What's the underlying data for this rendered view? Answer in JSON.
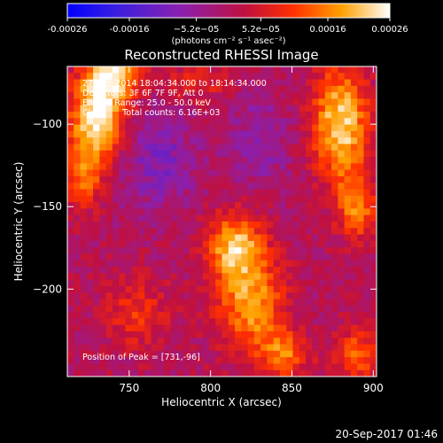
{
  "chart_data": {
    "type": "heatmap",
    "title": "Reconstructed RHESSI Image",
    "xlabel": "Heliocentric X (arcsec)",
    "ylabel": "Heliocentric Y (arcsec)",
    "xlim": [
      712,
      902
    ],
    "ylim": [
      -253,
      -65
    ],
    "x_ticks": [
      750,
      800,
      850,
      900
    ],
    "x_tick_labels": [
      "750",
      "800",
      "850",
      "900"
    ],
    "y_ticks": [
      -100,
      -150,
      -200
    ],
    "y_tick_labels": [
      "−100",
      "−150",
      "−200"
    ],
    "colorbar": {
      "range": [
        -0.00026,
        0.00026
      ],
      "ticks": [
        -0.00026,
        -0.00016,
        -5.2e-05,
        5.2e-05,
        0.00016,
        0.00026
      ],
      "tick_labels": [
        "-0.00026",
        "-0.00016",
        "−5.2e−05",
        "5.2e−05",
        "0.00016",
        "0.00026"
      ],
      "unit_label": "(photons cm⁻² s⁻¹ asec⁻²)",
      "colormap": "rhessi-blue-purple-red-yellow-white"
    },
    "annotations": [
      "27-Dec-2014 18:04:34.000 to 18:14:34.000",
      "Detectors: 3F 6F 7F 9F, Att 0",
      "Energy Range: 25.0 - 50.0 keV",
      "Clean      Total counts: 6.16E+03"
    ],
    "peak_label": "Position of Peak = [731,-96]",
    "peak_position": [
      731,
      -96
    ],
    "map_description_sources": [
      {
        "x": 731,
        "y": -96,
        "intensity": 1.0,
        "sx": 12,
        "sy": 16
      },
      {
        "x": 740,
        "y": -70,
        "intensity": 0.85,
        "sx": 12,
        "sy": 10
      },
      {
        "x": 722,
        "y": -130,
        "intensity": 0.6,
        "sx": 8,
        "sy": 14
      },
      {
        "x": 880,
        "y": -100,
        "intensity": 0.9,
        "sx": 12,
        "sy": 24
      },
      {
        "x": 890,
        "y": -150,
        "intensity": 0.6,
        "sx": 8,
        "sy": 14
      },
      {
        "x": 815,
        "y": -175,
        "intensity": 0.8,
        "sx": 12,
        "sy": 14
      },
      {
        "x": 825,
        "y": -210,
        "intensity": 0.7,
        "sx": 14,
        "sy": 20
      },
      {
        "x": 845,
        "y": -240,
        "intensity": 0.55,
        "sx": 10,
        "sy": 10
      },
      {
        "x": 890,
        "y": -240,
        "intensity": 0.55,
        "sx": 10,
        "sy": 10
      },
      {
        "x": 755,
        "y": -215,
        "intensity": 0.35,
        "sx": 14,
        "sy": 14
      },
      {
        "x": 790,
        "y": -75,
        "intensity": 0.3,
        "sx": 14,
        "sy": 8
      }
    ],
    "negative_regions": [
      {
        "x": 768,
        "y": -120,
        "sx": 16,
        "sy": 22,
        "depth": 0.35
      },
      {
        "x": 830,
        "y": -110,
        "sx": 14,
        "sy": 20,
        "depth": 0.25
      }
    ],
    "grid": false
  },
  "footer": {
    "timestamp": "20-Sep-2017 01:46"
  }
}
